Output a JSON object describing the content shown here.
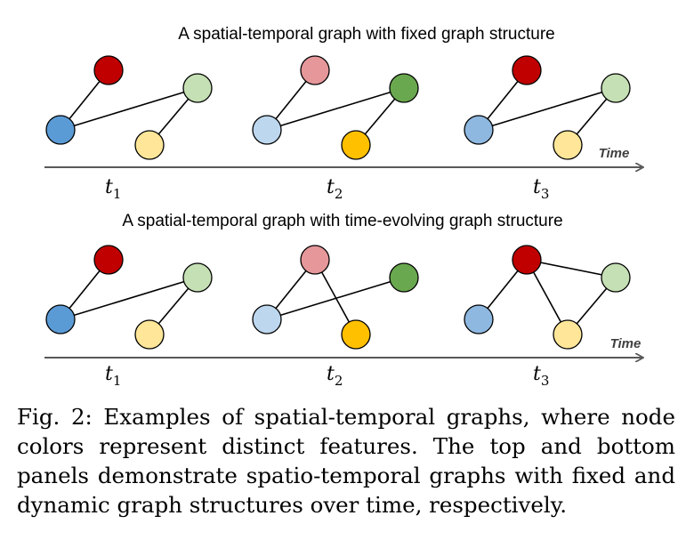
{
  "colors": {
    "dark_red": "#c00000",
    "pink": "#e6979a",
    "light_green": "#c5e0b4",
    "dark_green": "#6aa84f",
    "blue": "#5b9bd5",
    "light_blue": "#bdd7ee",
    "mid_blue": "#8eb8e0",
    "light_yellow": "#ffe699",
    "orange": "#ffc000"
  },
  "axis_label": "Time",
  "panels": [
    {
      "title": "A spatial-temporal graph with fixed graph structure",
      "steps": [
        {
          "t": "t",
          "sub": "1",
          "nodes": {
            "top": "dark_red",
            "right": "light_green",
            "left": "blue",
            "bottom": "light_yellow"
          },
          "edges": [
            [
              "left",
              "top"
            ],
            [
              "left",
              "right"
            ],
            [
              "bottom",
              "right"
            ]
          ]
        },
        {
          "t": "t",
          "sub": "2",
          "nodes": {
            "top": "pink",
            "right": "dark_green",
            "left": "light_blue",
            "bottom": "orange"
          },
          "edges": [
            [
              "left",
              "top"
            ],
            [
              "left",
              "right"
            ],
            [
              "bottom",
              "right"
            ]
          ]
        },
        {
          "t": "t",
          "sub": "3",
          "nodes": {
            "top": "dark_red",
            "right": "light_green",
            "left": "mid_blue",
            "bottom": "light_yellow"
          },
          "edges": [
            [
              "left",
              "top"
            ],
            [
              "left",
              "right"
            ],
            [
              "bottom",
              "right"
            ]
          ]
        }
      ]
    },
    {
      "title": "A spatial-temporal graph with time-evolving graph structure",
      "steps": [
        {
          "t": "t",
          "sub": "1",
          "nodes": {
            "top": "dark_red",
            "right": "light_green",
            "left": "blue",
            "bottom": "light_yellow"
          },
          "edges": [
            [
              "left",
              "top"
            ],
            [
              "left",
              "right"
            ],
            [
              "bottom",
              "right"
            ]
          ]
        },
        {
          "t": "t",
          "sub": "2",
          "nodes": {
            "top": "pink",
            "right": "dark_green",
            "left": "light_blue",
            "bottom": "orange"
          },
          "edges": [
            [
              "left",
              "top"
            ],
            [
              "left",
              "right"
            ],
            [
              "top",
              "bottom"
            ]
          ]
        },
        {
          "t": "t",
          "sub": "3",
          "nodes": {
            "top": "dark_red",
            "right": "light_green",
            "left": "mid_blue",
            "bottom": "light_yellow"
          },
          "edges": [
            [
              "left",
              "top"
            ],
            [
              "top",
              "right"
            ],
            [
              "top",
              "bottom"
            ],
            [
              "bottom",
              "right"
            ]
          ]
        }
      ]
    }
  ],
  "caption": "Fig. 2: Examples of spatial-temporal graphs, where node colors represent distinct features. The top and bottom panels demonstrate spatio-temporal graphs with fixed and dynamic graph structures over time, respectively."
}
